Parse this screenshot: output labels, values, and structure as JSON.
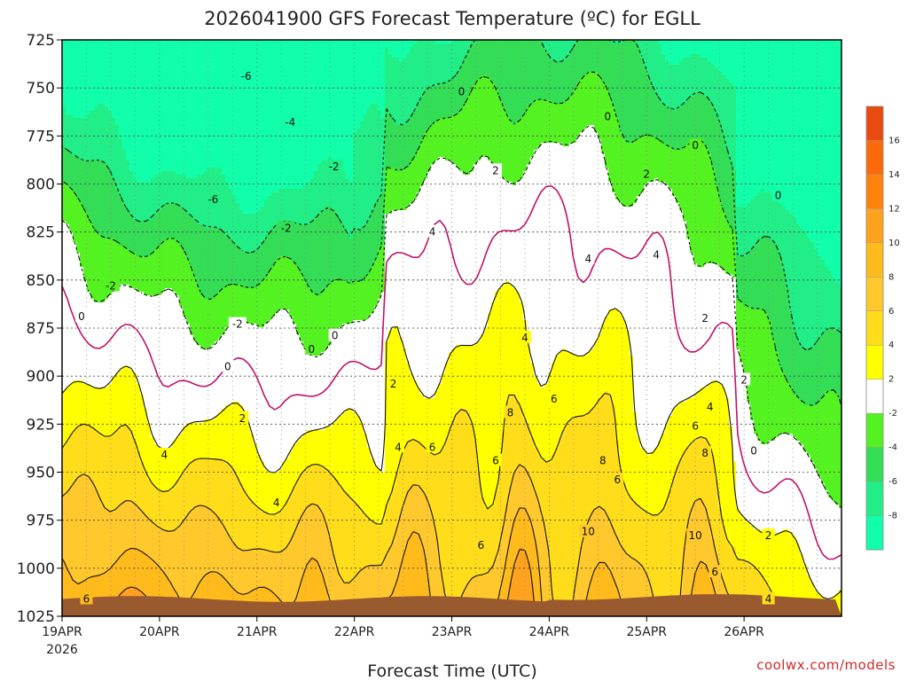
{
  "chart_data": {
    "type": "heatmap",
    "title": "2026041900 GFS Forecast Temperature (ºC) for EGLL",
    "xlabel": "Forecast Time (UTC)",
    "credit": "coolwx.com/models",
    "x_ticks": [
      "19APR",
      "20APR",
      "21APR",
      "22APR",
      "23APR",
      "24APR",
      "25APR",
      "26APR"
    ],
    "x_tick_year": "2026",
    "y_ticks": [
      725,
      750,
      775,
      800,
      825,
      850,
      875,
      900,
      925,
      950,
      975,
      1000,
      1025
    ],
    "ylim": [
      725,
      1025
    ],
    "y_reversed": true,
    "grid": true,
    "colorbar": {
      "labels": [
        "16",
        "14",
        "12",
        "10",
        "8",
        "6",
        "4",
        "2",
        "-2",
        "-4",
        "-6",
        "-8"
      ],
      "colors": [
        "#e84a10",
        "#fb6a0a",
        "#ff820c",
        "#ffa21e",
        "#ffba1c",
        "#ffc82c",
        "#ffdd1a",
        "#ffff00",
        "#ffffff",
        "#55f222",
        "#33dd55",
        "#22ee88",
        "#11ffaa"
      ]
    },
    "contour_labels": [
      "-6",
      "-4",
      "-2",
      "0",
      "2",
      "4",
      "6",
      "8",
      "10"
    ],
    "colors": {
      "terrain": "#9a5a30",
      "zero_line": "#c0106a",
      "contour": "#111111"
    }
  }
}
